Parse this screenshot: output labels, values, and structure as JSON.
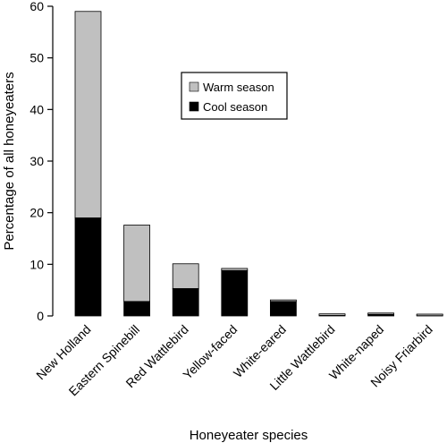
{
  "chart_data": {
    "type": "bar",
    "stacked": true,
    "title": "",
    "xlabel": "Honeyeater species",
    "ylabel": "Percentage of all honeyeaters",
    "ylim": [
      0,
      60
    ],
    "yticks": [
      0,
      10,
      20,
      30,
      40,
      50,
      60
    ],
    "grid": false,
    "legend_position": "upper-center",
    "categories": [
      "New Holland",
      "Eastern Spinebill",
      "Red Wattlebird",
      "Yellow-faced",
      "White-eared",
      "Little Wattlebird",
      "White-naped",
      "Noisy Friarbird"
    ],
    "series": [
      {
        "name": "Cool season",
        "color": "#000000",
        "values": [
          19,
          2.8,
          5.3,
          8.8,
          2.8,
          0.1,
          0.3,
          0.05
        ]
      },
      {
        "name": "Warm season",
        "color": "#c0c0c0",
        "values": [
          40,
          14.8,
          4.8,
          0.4,
          0.3,
          0.3,
          0.1,
          0.3
        ]
      }
    ],
    "legend": [
      "Warm season",
      "Cool season"
    ]
  }
}
